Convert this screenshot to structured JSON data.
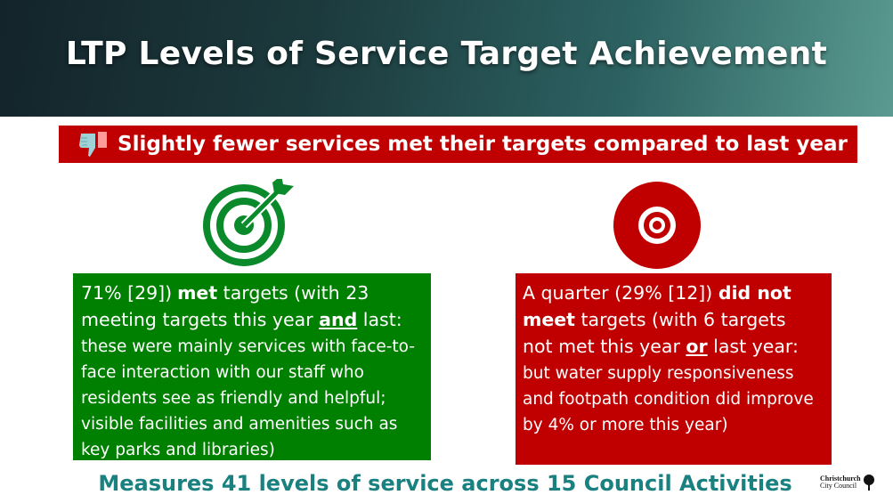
{
  "header": {
    "title": "LTP Levels of Service Target Achievement"
  },
  "subtitle": {
    "text": "Slightly fewer services met their targets compared to last year",
    "icon": "thumbs-down-icon"
  },
  "met": {
    "icon": "target-bullseye-icon",
    "pct": "71% [29])",
    "met_word": "met",
    "targets1": " targets (with 23",
    "line2_a": "meeting targets this year ",
    "and_word": "and",
    "line2_b": " last:",
    "rest": "these were mainly services with face-to-face interaction with our staff who residents see as friendly and helpful; visible facilities and amenities such as key parks and libraries)"
  },
  "not_met": {
    "icon": "target-missed-icon",
    "lead": "A quarter (29% [12]) ",
    "did_not": "did not",
    "meet": "meet",
    "targets1": " targets (with 6 targets",
    "line3_a": "not met this year ",
    "or_word": "or",
    "line3_b": " last year:",
    "rest": "but water supply responsiveness and footpath condition did improve by 4% or more this year)"
  },
  "footer": {
    "text": "Measures 41 levels of service across 15 Council Activities"
  },
  "logo": {
    "line1": "Christchurch",
    "line2": "City Council"
  },
  "colors": {
    "green": "#008000",
    "red": "#c00000",
    "teal": "#1a8080"
  }
}
